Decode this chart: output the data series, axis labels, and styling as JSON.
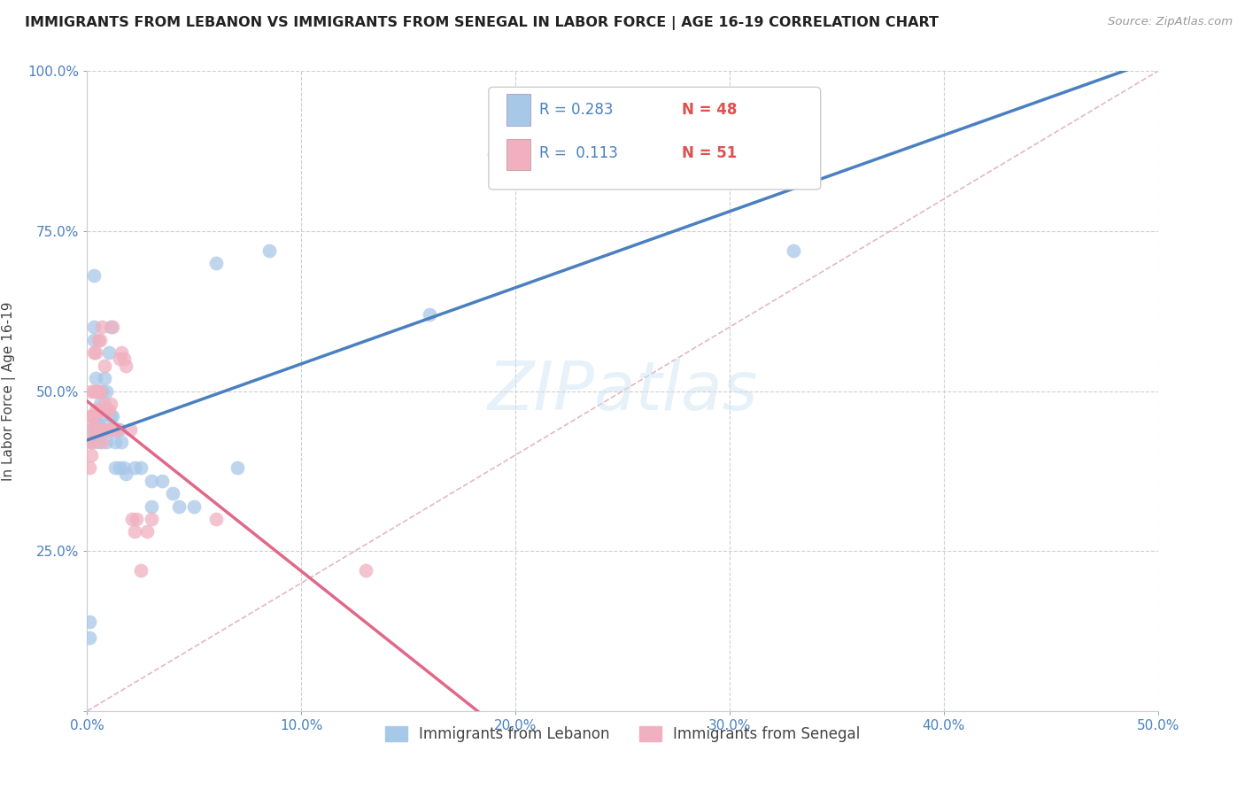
{
  "title": "IMMIGRANTS FROM LEBANON VS IMMIGRANTS FROM SENEGAL IN LABOR FORCE | AGE 16-19 CORRELATION CHART",
  "source": "Source: ZipAtlas.com",
  "ylabel": "In Labor Force | Age 16-19",
  "xlim": [
    0.0,
    0.5
  ],
  "ylim": [
    0.0,
    1.0
  ],
  "xticks": [
    0.0,
    0.1,
    0.2,
    0.3,
    0.4,
    0.5
  ],
  "xticklabels": [
    "0.0%",
    "10.0%",
    "20.0%",
    "30.0%",
    "40.0%",
    "50.0%"
  ],
  "yticks": [
    0.0,
    0.25,
    0.5,
    0.75,
    1.0
  ],
  "yticklabels": [
    "",
    "25.0%",
    "50.0%",
    "75.0%",
    "100.0%"
  ],
  "lebanon_color": "#a8c8e8",
  "senegal_color": "#f0b0c0",
  "lebanon_line_color": "#4a80c0",
  "senegal_line_color": "#e06888",
  "ref_line_color": "#e0b0c0",
  "legend_r1": "0.283",
  "legend_n1": "48",
  "legend_r2": "0.113",
  "legend_n2": "51",
  "watermark": "ZIPatlas",
  "lebanon_x": [
    0.001,
    0.001,
    0.002,
    0.002,
    0.003,
    0.003,
    0.003,
    0.004,
    0.004,
    0.005,
    0.005,
    0.005,
    0.006,
    0.006,
    0.007,
    0.007,
    0.008,
    0.008,
    0.009,
    0.009,
    0.01,
    0.01,
    0.011,
    0.011,
    0.012,
    0.012,
    0.013,
    0.013,
    0.014,
    0.015,
    0.015,
    0.016,
    0.017,
    0.018,
    0.022,
    0.025,
    0.03,
    0.03,
    0.035,
    0.04,
    0.043,
    0.05,
    0.06,
    0.07,
    0.085,
    0.16,
    0.19,
    0.33
  ],
  "lebanon_y": [
    0.115,
    0.14,
    0.42,
    0.44,
    0.58,
    0.6,
    0.68,
    0.45,
    0.52,
    0.42,
    0.45,
    0.5,
    0.44,
    0.48,
    0.46,
    0.5,
    0.44,
    0.52,
    0.42,
    0.5,
    0.44,
    0.56,
    0.46,
    0.6,
    0.46,
    0.44,
    0.38,
    0.42,
    0.44,
    0.44,
    0.38,
    0.42,
    0.38,
    0.37,
    0.38,
    0.38,
    0.32,
    0.36,
    0.36,
    0.34,
    0.32,
    0.32,
    0.7,
    0.38,
    0.72,
    0.62,
    0.87,
    0.72
  ],
  "senegal_x": [
    0.001,
    0.001,
    0.001,
    0.002,
    0.002,
    0.002,
    0.002,
    0.003,
    0.003,
    0.003,
    0.003,
    0.004,
    0.004,
    0.004,
    0.004,
    0.005,
    0.005,
    0.005,
    0.005,
    0.006,
    0.006,
    0.006,
    0.006,
    0.007,
    0.007,
    0.007,
    0.008,
    0.008,
    0.008,
    0.009,
    0.009,
    0.01,
    0.01,
    0.011,
    0.011,
    0.012,
    0.013,
    0.014,
    0.015,
    0.016,
    0.017,
    0.018,
    0.02,
    0.021,
    0.022,
    0.023,
    0.025,
    0.028,
    0.03,
    0.06,
    0.13
  ],
  "senegal_y": [
    0.38,
    0.42,
    0.46,
    0.4,
    0.44,
    0.46,
    0.5,
    0.42,
    0.46,
    0.5,
    0.56,
    0.44,
    0.47,
    0.5,
    0.56,
    0.44,
    0.47,
    0.5,
    0.58,
    0.44,
    0.47,
    0.5,
    0.58,
    0.42,
    0.47,
    0.6,
    0.44,
    0.48,
    0.54,
    0.44,
    0.47,
    0.44,
    0.47,
    0.44,
    0.48,
    0.6,
    0.44,
    0.44,
    0.55,
    0.56,
    0.55,
    0.54,
    0.44,
    0.3,
    0.28,
    0.3,
    0.22,
    0.28,
    0.3,
    0.3,
    0.22
  ]
}
